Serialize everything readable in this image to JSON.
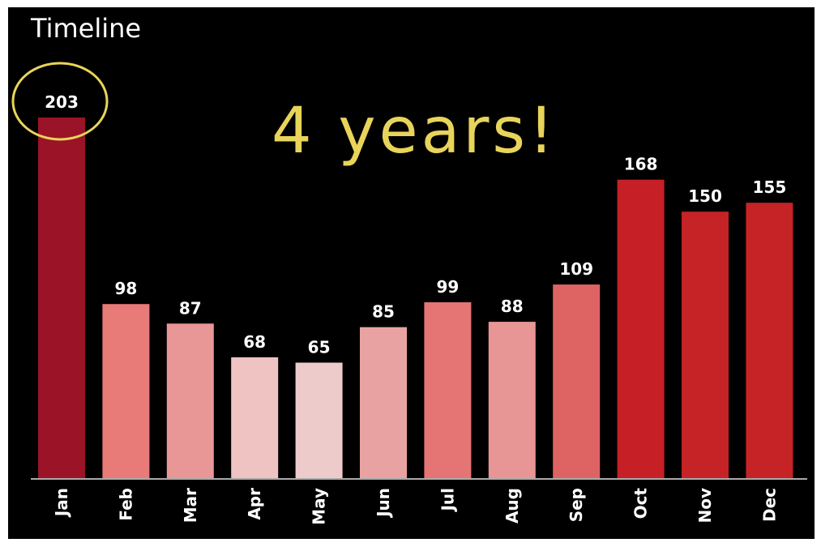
{
  "chart_data": {
    "type": "bar",
    "title": "Timeline",
    "categories": [
      "Jan",
      "Feb",
      "Mar",
      "Apr",
      "May",
      "Jun",
      "Jul",
      "Aug",
      "Sep",
      "Oct",
      "Nov",
      "Dec"
    ],
    "values": [
      203,
      98,
      87,
      68,
      65,
      85,
      99,
      88,
      109,
      168,
      150,
      155
    ],
    "bar_colors": [
      "#9b1326",
      "#e87a78",
      "#e89696",
      "#f0c3c3",
      "#eecbcb",
      "#e9a2a2",
      "#e57474",
      "#e89595",
      "#de6464",
      "#c71f26",
      "#c52326",
      "#c52326"
    ],
    "ylim": [
      0,
      203
    ],
    "grid": false,
    "legend": "none",
    "highlighted_category": "Jan",
    "highlight_color": "#e8d45a",
    "annotation": "4 years!"
  }
}
